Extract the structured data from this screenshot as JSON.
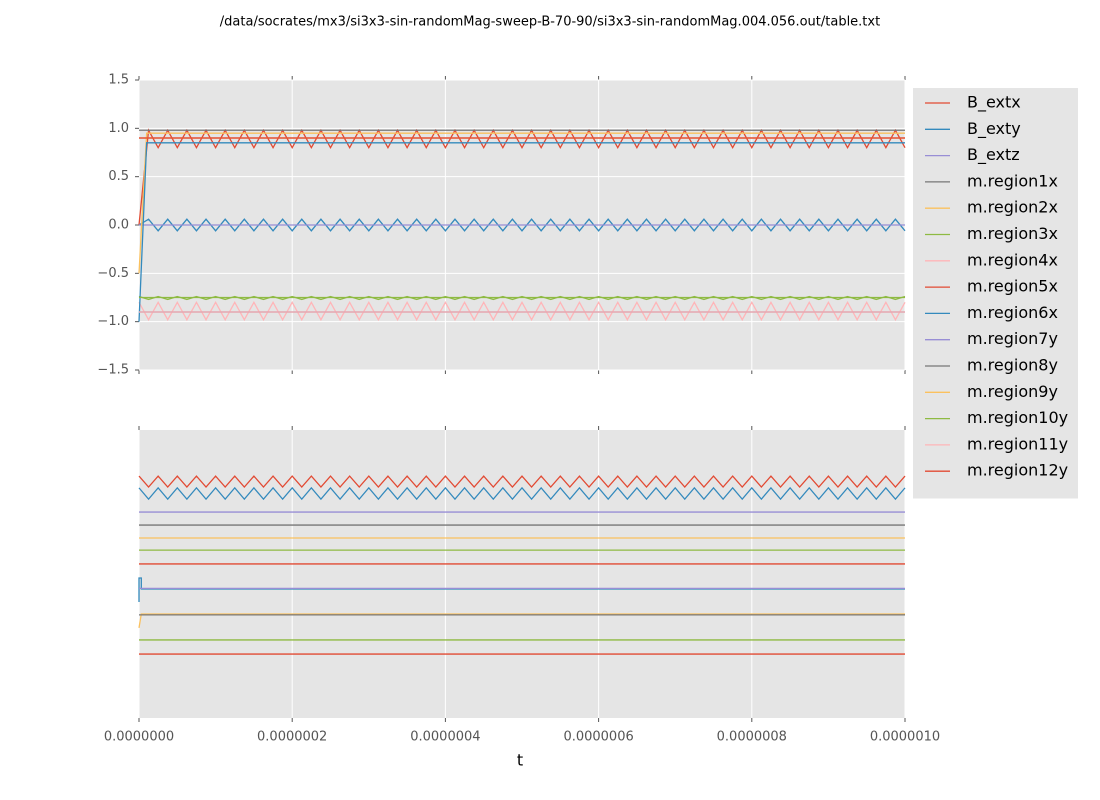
{
  "chart_data": [
    {
      "type": "line",
      "title": "/data/socrates/mx3/si3x3-sin-randomMag-sweep-B-70-90/si3x3-sin-randomMag.004.056.out/table.txt",
      "xlim": [
        0,
        1e-06
      ],
      "xticks": [
        0,
        2e-07,
        4e-07,
        6e-07,
        8e-07,
        1e-06
      ],
      "xtick_labels": false,
      "ylim": [
        -1.5,
        1.5
      ],
      "yticks": [
        {
          "value": -1.5,
          "label": "−1.5"
        },
        {
          "value": -1,
          "label": "−1.0"
        },
        {
          "value": -0.5,
          "label": "−0.5"
        },
        {
          "value": 0,
          "label": "0.0"
        },
        0.5,
        {
          "value": 1,
          "label": "1.0"
        },
        1.5
      ],
      "grid": true,
      "legend": "right",
      "x": [
        0,
        1.25e-08,
        2.5e-08,
        3.75e-08,
        5e-08,
        6.25e-08,
        7.5e-08,
        8.75e-08,
        1e-07,
        1.125e-07,
        1.25e-07,
        1.375e-07,
        1.5e-07,
        1.625e-07,
        1.75e-07,
        1.875e-07,
        2e-07,
        2.125e-07,
        2.25e-07,
        2.375e-07,
        2.5e-07,
        2.625e-07,
        2.75e-07,
        2.875e-07,
        3e-07,
        3.125e-07,
        3.25e-07,
        3.375e-07,
        3.5e-07,
        3.625e-07,
        3.75e-07,
        3.875e-07,
        4e-07,
        4.125e-07,
        4.25e-07,
        4.375e-07,
        4.5e-07,
        4.625e-07,
        4.75e-07,
        4.875e-07,
        5e-07,
        5.125e-07,
        5.25e-07,
        5.375e-07,
        5.5e-07,
        5.625e-07,
        5.75e-07,
        5.875e-07,
        6e-07,
        6.125e-07,
        6.25e-07,
        6.375e-07,
        6.5e-07,
        6.625e-07,
        6.75e-07,
        6.875e-07,
        7e-07,
        7.125e-07,
        7.25e-07,
        7.375e-07,
        7.5e-07,
        7.625e-07,
        7.75e-07,
        7.875e-07,
        8e-07,
        8.125e-07,
        8.25e-07,
        8.375e-07,
        8.5e-07,
        8.625e-07,
        8.75e-07,
        8.875e-07,
        9e-07,
        9.125e-07,
        9.25e-07,
        9.375e-07,
        9.5e-07,
        9.625e-07,
        9.75e-07,
        9.875e-07,
        1e-06
      ],
      "series": [
        {
          "name": "B_extx",
          "color": "#E24A33",
          "values": [
            0,
            0.98,
            0.8,
            0.98,
            0.8,
            0.98,
            0.8,
            0.98,
            0.8,
            0.98,
            0.8,
            0.98,
            0.8,
            0.98,
            0.8,
            0.98,
            0.8,
            0.98,
            0.8,
            0.98,
            0.8,
            0.98,
            0.8,
            0.98,
            0.8,
            0.98,
            0.8,
            0.98,
            0.8,
            0.98,
            0.8,
            0.98,
            0.8,
            0.98,
            0.8,
            0.98,
            0.8,
            0.98,
            0.8,
            0.98,
            0.8,
            0.98,
            0.8,
            0.98,
            0.8,
            0.98,
            0.8,
            0.98,
            0.8,
            0.98,
            0.8,
            0.98,
            0.8,
            0.98,
            0.8,
            0.98,
            0.8,
            0.98,
            0.8,
            0.98,
            0.8,
            0.98,
            0.8,
            0.98,
            0.8,
            0.98,
            0.8,
            0.98,
            0.8,
            0.98,
            0.8,
            0.98,
            0.8,
            0.98,
            0.8,
            0.98,
            0.8,
            0.98,
            0.8,
            0.98,
            0.8
          ]
        },
        {
          "name": "B_exty",
          "color": "#348ABD",
          "values": [
            0,
            0.06,
            -0.06,
            0.06,
            -0.06,
            0.06,
            -0.06,
            0.06,
            -0.06,
            0.06,
            -0.06,
            0.06,
            -0.06,
            0.06,
            -0.06,
            0.06,
            -0.06,
            0.06,
            -0.06,
            0.06,
            -0.06,
            0.06,
            -0.06,
            0.06,
            -0.06,
            0.06,
            -0.06,
            0.06,
            -0.06,
            0.06,
            -0.06,
            0.06,
            -0.06,
            0.06,
            -0.06,
            0.06,
            -0.06,
            0.06,
            -0.06,
            0.06,
            -0.06,
            0.06,
            -0.06,
            0.06,
            -0.06,
            0.06,
            -0.06,
            0.06,
            -0.06,
            0.06,
            -0.06,
            0.06,
            -0.06,
            0.06,
            -0.06,
            0.06,
            -0.06,
            0.06,
            -0.06,
            0.06,
            -0.06,
            0.06,
            -0.06,
            0.06,
            -0.06,
            0.06,
            -0.06,
            0.06,
            -0.06,
            0.06,
            -0.06,
            0.06,
            -0.06,
            0.06,
            -0.06,
            0.06,
            -0.06,
            0.06,
            -0.06,
            0.06,
            -0.06
          ]
        },
        {
          "name": "B_extz",
          "color": "#988ED5",
          "x": [
            0,
            1e-06
          ],
          "values": [
            0,
            0
          ]
        },
        {
          "name": "m.region1x",
          "color": "#777777",
          "x": [
            0,
            1e-06
          ],
          "values": [
            0.98,
            0.98
          ]
        },
        {
          "name": "m.region2x",
          "color": "#FBC15E",
          "x": [
            0,
            1e-08,
            1e-06
          ],
          "values": [
            -0.5,
            0.95,
            0.95
          ]
        },
        {
          "name": "m.region3x",
          "color": "#8EBA42",
          "values": [
            -0.74,
            -0.77,
            -0.74,
            -0.77,
            -0.74,
            -0.77,
            -0.74,
            -0.77,
            -0.74,
            -0.77,
            -0.74,
            -0.77,
            -0.74,
            -0.77,
            -0.74,
            -0.77,
            -0.74,
            -0.77,
            -0.74,
            -0.77,
            -0.74,
            -0.77,
            -0.74,
            -0.77,
            -0.74,
            -0.77,
            -0.74,
            -0.77,
            -0.74,
            -0.77,
            -0.74,
            -0.77,
            -0.74,
            -0.77,
            -0.74,
            -0.77,
            -0.74,
            -0.77,
            -0.74,
            -0.77,
            -0.74,
            -0.77,
            -0.74,
            -0.77,
            -0.74,
            -0.77,
            -0.74,
            -0.77,
            -0.74,
            -0.77,
            -0.74,
            -0.77,
            -0.74,
            -0.77,
            -0.74,
            -0.77,
            -0.74,
            -0.77,
            -0.74,
            -0.77,
            -0.74,
            -0.77,
            -0.74,
            -0.77,
            -0.74,
            -0.77,
            -0.74,
            -0.77,
            -0.74,
            -0.77,
            -0.74,
            -0.77,
            -0.74,
            -0.77,
            -0.74,
            -0.77,
            -0.74,
            -0.77,
            -0.74,
            -0.77,
            -0.74
          ]
        },
        {
          "name": "m.region4x",
          "color": "#FFB5B8",
          "values": [
            -0.8,
            -0.98,
            -0.8,
            -0.98,
            -0.8,
            -0.98,
            -0.8,
            -0.98,
            -0.8,
            -0.98,
            -0.8,
            -0.98,
            -0.8,
            -0.98,
            -0.8,
            -0.98,
            -0.8,
            -0.98,
            -0.8,
            -0.98,
            -0.8,
            -0.98,
            -0.8,
            -0.98,
            -0.8,
            -0.98,
            -0.8,
            -0.98,
            -0.8,
            -0.98,
            -0.8,
            -0.98,
            -0.8,
            -0.98,
            -0.8,
            -0.98,
            -0.8,
            -0.98,
            -0.8,
            -0.98,
            -0.8,
            -0.98,
            -0.8,
            -0.98,
            -0.8,
            -0.98,
            -0.8,
            -0.98,
            -0.8,
            -0.98,
            -0.8,
            -0.98,
            -0.8,
            -0.98,
            -0.8,
            -0.98,
            -0.8,
            -0.98,
            -0.8,
            -0.98,
            -0.8,
            -0.98,
            -0.8,
            -0.98,
            -0.8,
            -0.98,
            -0.8,
            -0.98,
            -0.8,
            -0.98,
            -0.8,
            -0.98,
            -0.8,
            -0.98,
            -0.8,
            -0.98,
            -0.8,
            -0.98,
            -0.8,
            -0.98,
            -0.8
          ]
        },
        {
          "name": "m.region5x",
          "color": "#E24A33",
          "x": [
            0,
            1e-06
          ],
          "values": [
            0.9,
            0.9
          ]
        },
        {
          "name": "m.region6x",
          "color": "#348ABD",
          "x": [
            0,
            1e-08,
            1e-06
          ],
          "values": [
            -1,
            0.85,
            0.85
          ]
        },
        {
          "name": "m.region7y",
          "color": "#988ED5",
          "x": [
            0,
            1e-06
          ],
          "values": [
            -0.9,
            -0.9
          ]
        },
        {
          "name": "m.region8y",
          "color": "#777777",
          "x": [
            0,
            1e-06
          ],
          "values": [
            -0.9,
            -0.9
          ]
        },
        {
          "name": "m.region9y",
          "color": "#FBC15E",
          "x": [
            0,
            1e-06
          ],
          "values": [
            0.9,
            0.9
          ]
        },
        {
          "name": "m.region10y",
          "color": "#8EBA42",
          "x": [
            0,
            1e-06
          ],
          "values": [
            -0.75,
            -0.75
          ]
        },
        {
          "name": "m.region11y",
          "color": "#FFB5B8",
          "x": [
            0,
            1e-06
          ],
          "values": [
            -0.9,
            -0.9
          ]
        },
        {
          "name": "m.region12y",
          "color": "#E24A33",
          "x": [
            0,
            1e-06
          ],
          "values": [
            0.9,
            0.9
          ]
        }
      ]
    },
    {
      "type": "line",
      "xlabel": "t",
      "xlim": [
        0,
        1e-06
      ],
      "xticks": [
        {
          "value": 0,
          "label": "0.0000000"
        },
        {
          "value": 2e-07,
          "label": "0.0000002"
        },
        {
          "value": 4e-07,
          "label": "0.0000004"
        },
        {
          "value": 6e-07,
          "label": "0.0000006"
        },
        {
          "value": 8e-07,
          "label": "0.0000008"
        },
        {
          "value": 1e-06,
          "label": "0.0000010"
        }
      ],
      "ylim": [
        0,
        1
      ],
      "grid": true,
      "x": [
        0,
        1.25e-08,
        2.5e-08,
        3.75e-08,
        5e-08,
        6.25e-08,
        7.5e-08,
        8.75e-08,
        1e-07,
        1.125e-07,
        1.25e-07,
        1.375e-07,
        1.5e-07,
        1.625e-07,
        1.75e-07,
        1.875e-07,
        2e-07,
        2.125e-07,
        2.25e-07,
        2.375e-07,
        2.5e-07,
        2.625e-07,
        2.75e-07,
        2.875e-07,
        3e-07,
        3.125e-07,
        3.25e-07,
        3.375e-07,
        3.5e-07,
        3.625e-07,
        3.75e-07,
        3.875e-07,
        4e-07,
        4.125e-07,
        4.25e-07,
        4.375e-07,
        4.5e-07,
        4.625e-07,
        4.75e-07,
        4.875e-07,
        5e-07,
        5.125e-07,
        5.25e-07,
        5.375e-07,
        5.5e-07,
        5.625e-07,
        5.75e-07,
        5.875e-07,
        6e-07,
        6.125e-07,
        6.25e-07,
        6.375e-07,
        6.5e-07,
        6.625e-07,
        6.75e-07,
        6.875e-07,
        7e-07,
        7.125e-07,
        7.25e-07,
        7.375e-07,
        7.5e-07,
        7.625e-07,
        7.75e-07,
        7.875e-07,
        8e-07,
        8.125e-07,
        8.25e-07,
        8.375e-07,
        8.5e-07,
        8.625e-07,
        8.75e-07,
        8.875e-07,
        9e-07,
        9.125e-07,
        9.25e-07,
        9.375e-07,
        9.5e-07,
        9.625e-07,
        9.75e-07,
        9.875e-07,
        1e-06
      ],
      "series": [
        {
          "color": "#E24A33",
          "values": [
            0.84,
            0.802,
            0.84,
            0.802,
            0.84,
            0.802,
            0.84,
            0.802,
            0.84,
            0.802,
            0.84,
            0.802,
            0.84,
            0.802,
            0.84,
            0.802,
            0.84,
            0.802,
            0.84,
            0.802,
            0.84,
            0.802,
            0.84,
            0.802,
            0.84,
            0.802,
            0.84,
            0.802,
            0.84,
            0.802,
            0.84,
            0.802,
            0.84,
            0.802,
            0.84,
            0.802,
            0.84,
            0.802,
            0.84,
            0.802,
            0.84,
            0.802,
            0.84,
            0.802,
            0.84,
            0.802,
            0.84,
            0.802,
            0.84,
            0.802,
            0.84,
            0.802,
            0.84,
            0.802,
            0.84,
            0.802,
            0.84,
            0.802,
            0.84,
            0.802,
            0.84,
            0.802,
            0.84,
            0.802,
            0.84,
            0.802,
            0.84,
            0.802,
            0.84,
            0.802,
            0.84,
            0.802,
            0.84,
            0.802,
            0.84,
            0.802,
            0.84,
            0.802,
            0.84,
            0.802,
            0.84
          ]
        },
        {
          "color": "#348ABD",
          "values": [
            0.799,
            0.76,
            0.799,
            0.76,
            0.799,
            0.76,
            0.799,
            0.76,
            0.799,
            0.76,
            0.799,
            0.76,
            0.799,
            0.76,
            0.799,
            0.76,
            0.799,
            0.76,
            0.799,
            0.76,
            0.799,
            0.76,
            0.799,
            0.76,
            0.799,
            0.76,
            0.799,
            0.76,
            0.799,
            0.76,
            0.799,
            0.76,
            0.799,
            0.76,
            0.799,
            0.76,
            0.799,
            0.76,
            0.799,
            0.76,
            0.799,
            0.76,
            0.799,
            0.76,
            0.799,
            0.76,
            0.799,
            0.76,
            0.799,
            0.76,
            0.799,
            0.76,
            0.799,
            0.76,
            0.799,
            0.76,
            0.799,
            0.76,
            0.799,
            0.76,
            0.799,
            0.76,
            0.799,
            0.76,
            0.799,
            0.76,
            0.799,
            0.76,
            0.799,
            0.76,
            0.799,
            0.76,
            0.799,
            0.76,
            0.799,
            0.76,
            0.799,
            0.76,
            0.799,
            0.76,
            0.799
          ]
        },
        {
          "color": "#988ED5",
          "x": [
            0,
            1e-06
          ],
          "values": [
            0.715,
            0.715
          ]
        },
        {
          "color": "#777777",
          "x": [
            0,
            1e-06
          ],
          "values": [
            0.67,
            0.67
          ]
        },
        {
          "color": "#FBC15E",
          "x": [
            0,
            1e-06
          ],
          "values": [
            0.625,
            0.625
          ]
        },
        {
          "color": "#8EBA42",
          "x": [
            0,
            1e-06
          ],
          "values": [
            0.583,
            0.583
          ]
        },
        {
          "color": "#E24A33",
          "x": [
            0,
            1e-06
          ],
          "values": [
            0.535,
            0.535
          ]
        },
        {
          "color": "#348ABD",
          "x": [
            0,
            0,
            3e-09,
            3e-09,
            1e-06
          ],
          "values": [
            0.403,
            0.486,
            0.486,
            0.448,
            0.448
          ]
        },
        {
          "color": "#988ED5",
          "x": [
            0,
            1e-06
          ],
          "values": [
            0.45,
            0.45
          ]
        },
        {
          "color": "#FBC15E",
          "x": [
            0,
            3e-09,
            1e-06
          ],
          "values": [
            0.313,
            0.361,
            0.361
          ]
        },
        {
          "color": "#777777",
          "x": [
            0,
            1e-06
          ],
          "values": [
            0.358,
            0.358
          ]
        },
        {
          "color": "#8EBA42",
          "x": [
            0,
            1e-06
          ],
          "values": [
            0.271,
            0.271
          ]
        },
        {
          "color": "#E24A33",
          "x": [
            0,
            1e-06
          ],
          "values": [
            0.222,
            0.222
          ]
        }
      ]
    }
  ]
}
